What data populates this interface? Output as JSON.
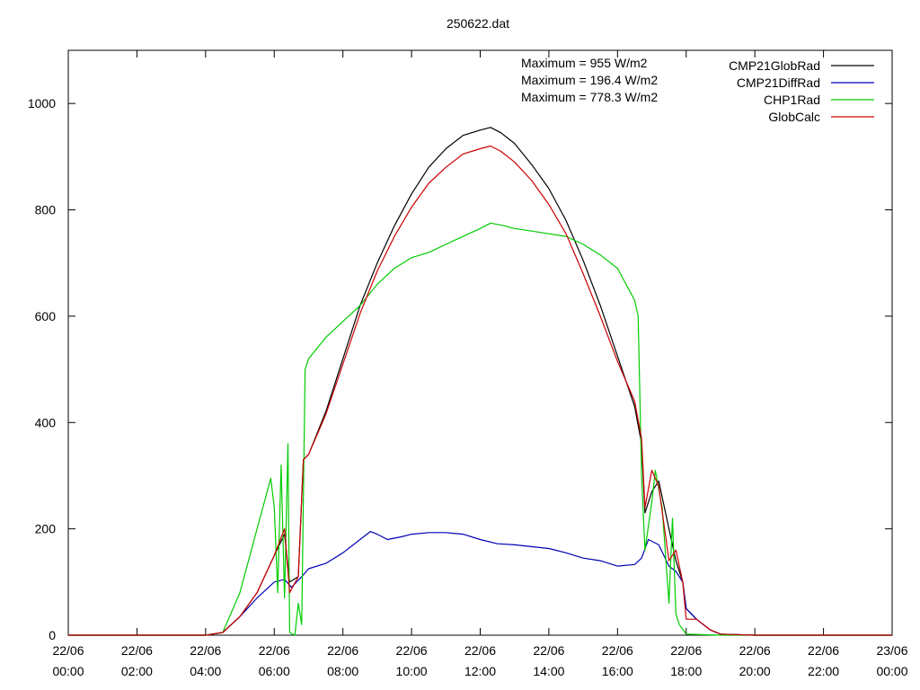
{
  "chart_data": {
    "type": "line",
    "title": "250622.dat",
    "xlabel": "",
    "ylabel": "",
    "xlim_hours": [
      0,
      24
    ],
    "ylim": [
      0,
      1100
    ],
    "yticks": [
      0,
      200,
      400,
      600,
      800,
      1000
    ],
    "xticks": [
      {
        "hour": 0,
        "date": "22/06",
        "time": "00:00"
      },
      {
        "hour": 2,
        "date": "22/06",
        "time": "02:00"
      },
      {
        "hour": 4,
        "date": "22/06",
        "time": "04:00"
      },
      {
        "hour": 6,
        "date": "22/06",
        "time": "06:00"
      },
      {
        "hour": 8,
        "date": "22/06",
        "time": "08:00"
      },
      {
        "hour": 10,
        "date": "22/06",
        "time": "10:00"
      },
      {
        "hour": 12,
        "date": "22/06",
        "time": "12:00"
      },
      {
        "hour": 14,
        "date": "22/06",
        "time": "14:00"
      },
      {
        "hour": 16,
        "date": "22/06",
        "time": "16:00"
      },
      {
        "hour": 18,
        "date": "22/06",
        "time": "18:00"
      },
      {
        "hour": 20,
        "date": "22/06",
        "time": "20:00"
      },
      {
        "hour": 22,
        "date": "22/06",
        "time": "22:00"
      },
      {
        "hour": 24,
        "date": "23/06",
        "time": "00:00"
      }
    ],
    "annotations": [
      "Maximum = 955 W/m2",
      "Maximum = 196.4 W/m2",
      "Maximum = 778.3 W/m2"
    ],
    "legend_position": "top-right",
    "series": [
      {
        "name": "CMP21GlobRad",
        "color": "#000000",
        "points": [
          [
            0,
            0
          ],
          [
            4,
            0
          ],
          [
            4.5,
            5
          ],
          [
            5,
            35
          ],
          [
            5.5,
            80
          ],
          [
            6,
            150
          ],
          [
            6.3,
            190
          ],
          [
            6.45,
            100
          ],
          [
            6.7,
            110
          ],
          [
            6.85,
            330
          ],
          [
            7,
            340
          ],
          [
            7.5,
            420
          ],
          [
            8,
            520
          ],
          [
            8.5,
            620
          ],
          [
            9,
            700
          ],
          [
            9.5,
            770
          ],
          [
            10,
            830
          ],
          [
            10.5,
            880
          ],
          [
            11,
            915
          ],
          [
            11.5,
            940
          ],
          [
            12,
            950
          ],
          [
            12.3,
            955
          ],
          [
            12.6,
            945
          ],
          [
            13,
            925
          ],
          [
            13.5,
            885
          ],
          [
            14,
            840
          ],
          [
            14.5,
            780
          ],
          [
            15,
            705
          ],
          [
            15.5,
            620
          ],
          [
            16,
            525
          ],
          [
            16.5,
            430
          ],
          [
            16.7,
            360
          ],
          [
            16.8,
            230
          ],
          [
            17,
            270
          ],
          [
            17.2,
            290
          ],
          [
            17.5,
            200
          ],
          [
            17.7,
            140
          ],
          [
            17.9,
            100
          ],
          [
            18,
            50
          ],
          [
            18.3,
            30
          ],
          [
            18.7,
            10
          ],
          [
            19,
            2
          ],
          [
            20,
            0
          ],
          [
            24,
            0
          ]
        ]
      },
      {
        "name": "CMP21DiffRad",
        "color": "#0000b4",
        "points": [
          [
            0,
            0
          ],
          [
            4,
            0
          ],
          [
            4.5,
            5
          ],
          [
            5,
            35
          ],
          [
            5.5,
            70
          ],
          [
            6,
            100
          ],
          [
            6.3,
            105
          ],
          [
            6.5,
            90
          ],
          [
            6.8,
            110
          ],
          [
            7,
            125
          ],
          [
            7.5,
            135
          ],
          [
            8,
            155
          ],
          [
            8.5,
            180
          ],
          [
            8.8,
            195
          ],
          [
            9,
            190
          ],
          [
            9.3,
            180
          ],
          [
            9.7,
            185
          ],
          [
            10,
            190
          ],
          [
            10.5,
            193
          ],
          [
            11,
            193
          ],
          [
            11.5,
            190
          ],
          [
            12,
            180
          ],
          [
            12.5,
            172
          ],
          [
            13,
            170
          ],
          [
            14,
            163
          ],
          [
            14.5,
            155
          ],
          [
            15,
            145
          ],
          [
            15.5,
            140
          ],
          [
            16,
            130
          ],
          [
            16.5,
            133
          ],
          [
            16.7,
            145
          ],
          [
            16.9,
            180
          ],
          [
            17.2,
            170
          ],
          [
            17.5,
            130
          ],
          [
            17.7,
            120
          ],
          [
            17.9,
            100
          ],
          [
            18,
            50
          ],
          [
            18.3,
            30
          ],
          [
            18.7,
            10
          ],
          [
            19,
            2
          ],
          [
            20,
            0
          ],
          [
            24,
            0
          ]
        ]
      },
      {
        "name": "CHP1Rad",
        "color": "#00cc00",
        "points": [
          [
            0,
            0
          ],
          [
            4,
            0
          ],
          [
            4.5,
            5
          ],
          [
            5,
            80
          ],
          [
            5.5,
            200
          ],
          [
            5.9,
            295
          ],
          [
            6.0,
            240
          ],
          [
            6.1,
            80
          ],
          [
            6.2,
            320
          ],
          [
            6.3,
            70
          ],
          [
            6.4,
            360
          ],
          [
            6.45,
            5
          ],
          [
            6.6,
            0
          ],
          [
            6.7,
            60
          ],
          [
            6.8,
            20
          ],
          [
            6.9,
            500
          ],
          [
            7,
            520
          ],
          [
            7.5,
            560
          ],
          [
            8,
            590
          ],
          [
            8.5,
            620
          ],
          [
            9,
            660
          ],
          [
            9.5,
            690
          ],
          [
            10,
            710
          ],
          [
            10.5,
            720
          ],
          [
            11,
            735
          ],
          [
            11.5,
            750
          ],
          [
            12,
            765
          ],
          [
            12.3,
            775
          ],
          [
            12.7,
            770
          ],
          [
            13,
            765
          ],
          [
            13.5,
            760
          ],
          [
            14,
            755
          ],
          [
            14.5,
            750
          ],
          [
            15,
            735
          ],
          [
            15.5,
            715
          ],
          [
            16,
            690
          ],
          [
            16.5,
            630
          ],
          [
            16.6,
            600
          ],
          [
            16.7,
            300
          ],
          [
            16.8,
            160
          ],
          [
            17,
            250
          ],
          [
            17.1,
            310
          ],
          [
            17.3,
            240
          ],
          [
            17.5,
            60
          ],
          [
            17.6,
            220
          ],
          [
            17.7,
            40
          ],
          [
            17.8,
            20
          ],
          [
            18,
            2
          ],
          [
            19,
            0
          ],
          [
            24,
            0
          ]
        ]
      },
      {
        "name": "GlobCalc",
        "color": "#cc0000",
        "points": [
          [
            0,
            0
          ],
          [
            4,
            0
          ],
          [
            4.5,
            5
          ],
          [
            5,
            35
          ],
          [
            5.5,
            80
          ],
          [
            6,
            150
          ],
          [
            6.3,
            200
          ],
          [
            6.45,
            80
          ],
          [
            6.7,
            110
          ],
          [
            6.85,
            330
          ],
          [
            7,
            340
          ],
          [
            7.5,
            415
          ],
          [
            8,
            510
          ],
          [
            8.5,
            605
          ],
          [
            9,
            685
          ],
          [
            9.5,
            750
          ],
          [
            10,
            805
          ],
          [
            10.5,
            850
          ],
          [
            11,
            880
          ],
          [
            11.5,
            905
          ],
          [
            12,
            915
          ],
          [
            12.3,
            920
          ],
          [
            12.6,
            910
          ],
          [
            13,
            890
          ],
          [
            13.5,
            855
          ],
          [
            14,
            810
          ],
          [
            14.5,
            755
          ],
          [
            15,
            680
          ],
          [
            15.5,
            600
          ],
          [
            16,
            515
          ],
          [
            16.5,
            440
          ],
          [
            16.7,
            370
          ],
          [
            16.8,
            240
          ],
          [
            17,
            310
          ],
          [
            17.2,
            280
          ],
          [
            17.5,
            140
          ],
          [
            17.7,
            160
          ],
          [
            17.9,
            100
          ],
          [
            18,
            30
          ],
          [
            18.3,
            30
          ],
          [
            18.7,
            10
          ],
          [
            19,
            2
          ],
          [
            20,
            0
          ],
          [
            24,
            0
          ]
        ]
      }
    ]
  }
}
